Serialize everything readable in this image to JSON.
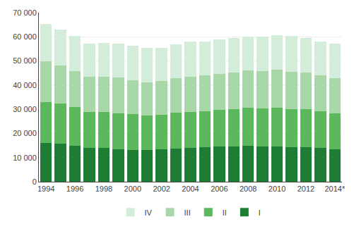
{
  "chart_data": {
    "type": "bar",
    "stacked": true,
    "categories": [
      "1994",
      null,
      "1996",
      null,
      "1998",
      null,
      "2000",
      null,
      "2002",
      null,
      "2004",
      null,
      "2006",
      null,
      "2008",
      null,
      "2010",
      null,
      "2012",
      null,
      "2014*"
    ],
    "series": [
      {
        "name": "I",
        "color": "#1e7d34",
        "values": [
          15900,
          15800,
          14900,
          14000,
          13900,
          13500,
          13200,
          13000,
          13500,
          13800,
          14000,
          14200,
          14500,
          14500,
          14800,
          14500,
          14600,
          14400,
          14400,
          13900,
          13500
        ]
      },
      {
        "name": "II",
        "color": "#5cb85c",
        "values": [
          17000,
          16700,
          16000,
          15000,
          15000,
          14800,
          14700,
          14300,
          14200,
          14700,
          14900,
          15000,
          15200,
          15500,
          15800,
          15800,
          15900,
          15700,
          15600,
          15200,
          14800
        ]
      },
      {
        "name": "III",
        "color": "#a8d8a8",
        "values": [
          17000,
          15600,
          15000,
          14500,
          14500,
          14800,
          14000,
          13800,
          14000,
          14500,
          14600,
          14800,
          15000,
          15200,
          15500,
          15600,
          15800,
          15500,
          15200,
          15000,
          14500
        ]
      },
      {
        "name": "IV",
        "color": "#d4edda",
        "values": [
          15500,
          14900,
          14600,
          13600,
          14100,
          14000,
          14500,
          14200,
          13800,
          14000,
          14500,
          14000,
          14300,
          14400,
          14000,
          14100,
          14500,
          14700,
          14400,
          13900,
          14500
        ]
      }
    ],
    "ylim": [
      0,
      70000
    ],
    "yticks": [
      0,
      {
        "value": 10000,
        "label": "10 000"
      },
      {
        "value": 20000,
        "label": "20 000"
      },
      {
        "value": 30000,
        "label": "30 000"
      },
      {
        "value": 40000,
        "label": "40 000"
      },
      {
        "value": 50000,
        "label": "50 000"
      },
      {
        "value": 60000,
        "label": "60 000"
      },
      {
        "value": 70000,
        "label": "70 000"
      }
    ],
    "grid": true,
    "legend": "bottom"
  }
}
